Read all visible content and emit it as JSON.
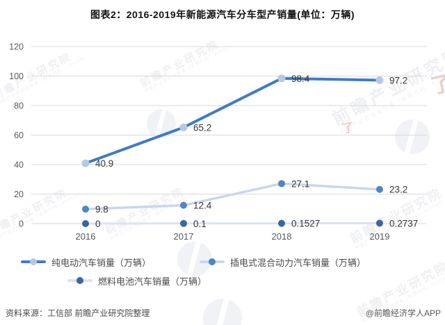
{
  "watermark": {
    "text": "前瞻产业研究院",
    "subtext": "中国产业咨询领导者（股票代码：839599）",
    "logo_glyph": "了"
  },
  "colors": {
    "grid": "#D9D9D9",
    "axis_text": "#595959",
    "label_text": "#333333",
    "title_text": "#111111",
    "footer_text": "#4A4A4A"
  },
  "chart_data": {
    "type": "line",
    "title": "图表2：2016-2019年新能源汽车分车型产销量(单位：万辆)",
    "xlabel": "",
    "ylabel": "",
    "categories": [
      "2016",
      "2017",
      "2018",
      "2019"
    ],
    "series": [
      {
        "name": "纯电动汽车销量（万辆）",
        "values": [
          40.9,
          65.2,
          98.4,
          97.2
        ],
        "labels": [
          "40.9",
          "65.2",
          "98.4",
          "97.2"
        ],
        "line_color": "#3D7BC8",
        "marker_color": "#B5C8E6"
      },
      {
        "name": "插电式混合动力汽车销量（万辆）",
        "values": [
          9.8,
          12.4,
          27.1,
          23.2
        ],
        "labels": [
          "9.8",
          "12.4",
          "27.1",
          "23.2"
        ],
        "line_color": "#C9D6EE",
        "marker_color": "#4E86C6"
      },
      {
        "name": "燃料电池汽车销量（万辆）",
        "values": [
          0,
          0.1,
          0.1527,
          0.2737
        ],
        "labels": [
          "0",
          "0.1",
          "0.1527",
          "0.2737"
        ],
        "line_color": "#DBE2F3",
        "marker_color": "#39679F"
      }
    ],
    "ylim": [
      0,
      120
    ],
    "yticks": [
      0,
      20,
      40,
      60,
      80,
      100,
      120
    ],
    "grid": true,
    "legend_position": "bottom"
  },
  "footer": {
    "source": "资料来源：工信部 前瞻产业研究院整理",
    "credit": "@前瞻经济学人APP"
  }
}
